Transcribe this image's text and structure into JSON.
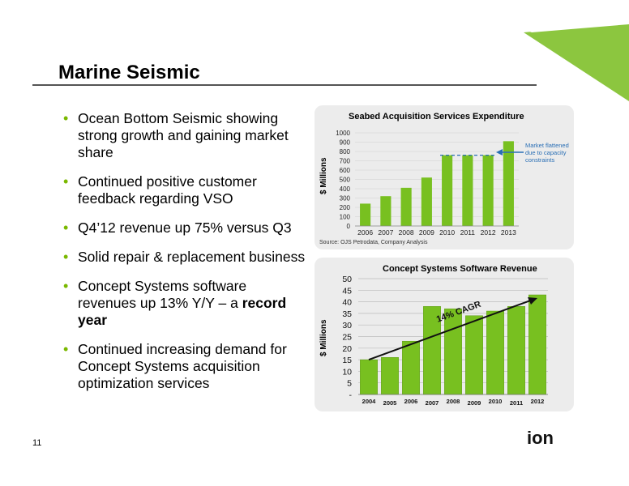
{
  "slide": {
    "title": "Marine Seismic",
    "page_number": "11",
    "logo_text": "ion"
  },
  "bullets": [
    {
      "text": "Ocean Bottom Seismic showing strong growth and gaining market share"
    },
    {
      "text": "Continued positive customer feedback regarding VSO"
    },
    {
      "text": "Q4’12 revenue up 75% versus Q3"
    },
    {
      "text": "Solid repair & replacement business"
    },
    {
      "text": "Concept Systems software revenues up 13% Y/Y – a ",
      "bold": "record year"
    },
    {
      "text": "Continued increasing demand for Concept Systems acquisition optimization services"
    }
  ],
  "colors": {
    "accent": "#7ab800",
    "bar": "#78c020",
    "arrow_blue": "#2a6fb5"
  },
  "chart_data": [
    {
      "type": "bar",
      "title": "Seabed Acquisition Services Expenditure",
      "ylabel": "$ Millions",
      "categories": [
        "2006",
        "2007",
        "2008",
        "2009",
        "2010",
        "2011",
        "2012",
        "2013"
      ],
      "values": [
        240,
        320,
        410,
        520,
        760,
        760,
        760,
        910
      ],
      "ylim": [
        0,
        1000
      ],
      "yticks": [
        0,
        100,
        200,
        300,
        400,
        500,
        600,
        700,
        800,
        900,
        1000
      ],
      "annotation": "Market flattened due to capacity constraints",
      "source": "Source: OJS Petrodata, Company Analysis"
    },
    {
      "type": "bar",
      "title": "Concept Systems Software Revenue",
      "ylabel": "$ Millions",
      "categories": [
        "2004",
        "2005",
        "2006",
        "2007",
        "2008",
        "2009",
        "2010",
        "2011",
        "2012"
      ],
      "values": [
        15,
        16,
        23,
        38,
        37,
        34,
        36,
        38,
        43
      ],
      "ylim": [
        0,
        50
      ],
      "yticks": [
        "-",
        "5",
        "10",
        "15",
        "20",
        "25",
        "30",
        "35",
        "40",
        "45",
        "50"
      ],
      "annotation": "14% CAGR"
    }
  ]
}
